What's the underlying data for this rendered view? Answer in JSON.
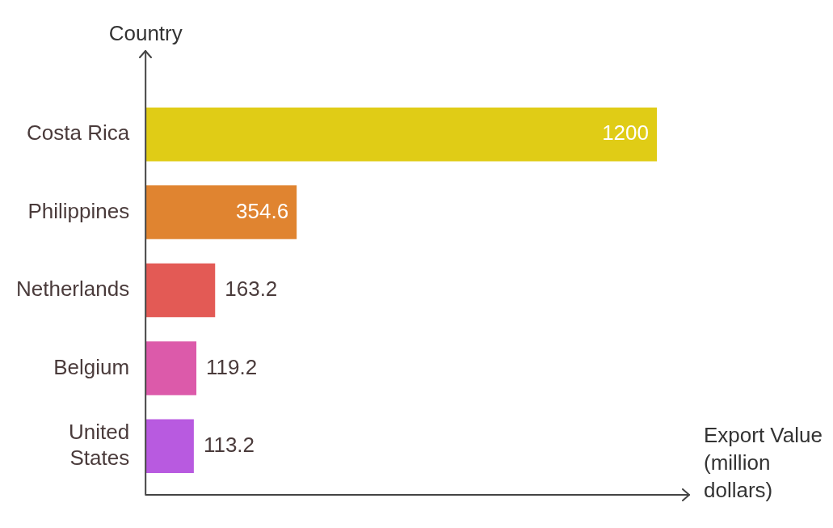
{
  "chart_data": {
    "type": "bar",
    "orientation": "horizontal",
    "xlabel": "Export Value (million dollars)",
    "ylabel": "Country",
    "categories": [
      "Costa Rica",
      "Philippines",
      "Netherlands",
      "Belgium",
      "United States"
    ],
    "values": [
      1200,
      354.6,
      163.2,
      119.2,
      113.2
    ],
    "colors": [
      "#e0cc16",
      "#e08430",
      "#e35a55",
      "#dc5aaa",
      "#b85ae0"
    ],
    "data_labels": true,
    "legend": false
  }
}
